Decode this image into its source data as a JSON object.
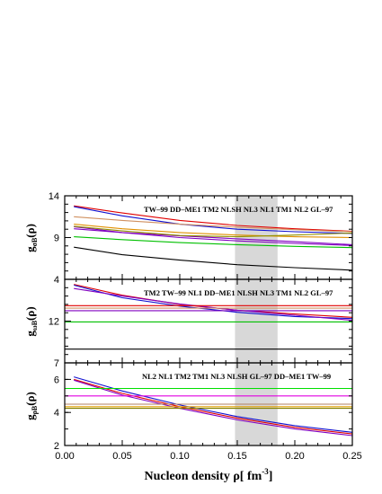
{
  "chart_data": {
    "type": "line",
    "xlabel": "Nucleon density ρ[ fm",
    "xlabel_sup": "-3",
    "xlabel_close": "]",
    "xlim": [
      0.0,
      0.25
    ],
    "x_ticks": [
      "0.00",
      "0.05",
      "0.10",
      "0.15",
      "0.20",
      "0.25"
    ],
    "shaded_band": [
      0.148,
      0.185
    ],
    "panels": [
      {
        "id": "sigma",
        "ylabel": "g",
        "ylabel_sub": "σB",
        "ylabel_arg": "(ρ)",
        "ylim": [
          4,
          14
        ],
        "y_ticks": [
          "4",
          "9",
          "14"
        ],
        "legend": "TW–99  DD–ME1 TM2 NLSH  NL3  NL1  TM1 NL2  GL–97",
        "series": [
          {
            "color": "#e00000",
            "x": [
              0.008,
              0.05,
              0.1,
              0.15,
              0.2,
              0.25
            ],
            "y": [
              12.8,
              11.95,
              11.05,
              10.45,
              10.05,
              9.75
            ]
          },
          {
            "color": "#1010d0",
            "x": [
              0.008,
              0.05,
              0.1,
              0.15,
              0.2,
              0.25
            ],
            "y": [
              12.7,
              11.6,
              10.6,
              10.0,
              9.7,
              9.5
            ]
          },
          {
            "color": "#8000c0",
            "x": [
              0.008,
              0.05,
              0.1,
              0.15,
              0.2,
              0.25
            ],
            "y": [
              10.3,
              9.6,
              9.0,
              8.6,
              8.3,
              8.05
            ]
          },
          {
            "color": "#8000c0",
            "x": [
              0.008,
              0.05,
              0.1,
              0.15,
              0.2,
              0.25
            ],
            "y": [
              10.05,
              9.6,
              9.2,
              8.85,
              8.5,
              8.15
            ]
          },
          {
            "color": "#d09060",
            "x": [
              0.008,
              0.05,
              0.1,
              0.15,
              0.2,
              0.25
            ],
            "y": [
              11.5,
              11.05,
              10.6,
              10.25,
              9.95,
              9.7
            ]
          },
          {
            "color": "#e09000",
            "x": [
              0.008,
              0.05,
              0.1,
              0.15,
              0.2,
              0.25
            ],
            "y": [
              10.6,
              10.05,
              9.6,
              9.3,
              9.1,
              9.0
            ]
          },
          {
            "color": "#909000",
            "x": [
              0.008,
              0.05,
              0.1,
              0.15,
              0.2,
              0.25
            ],
            "y": [
              10.35,
              9.8,
              9.25,
              9.1,
              9.3,
              9.55
            ]
          },
          {
            "color": "#00c000",
            "x": [
              0.008,
              0.05,
              0.1,
              0.15,
              0.2,
              0.25
            ],
            "y": [
              9.1,
              8.75,
              8.4,
              8.15,
              7.95,
              7.8
            ]
          },
          {
            "color": "#000000",
            "x": [
              0.008,
              0.05,
              0.1,
              0.15,
              0.2,
              0.25
            ],
            "y": [
              7.85,
              6.95,
              6.3,
              5.75,
              5.4,
              5.1
            ]
          }
        ]
      },
      {
        "id": "omega",
        "ylabel": "g",
        "ylabel_sub": "ωB",
        "ylabel_arg": "(ρ)",
        "ylim": [
          7,
          17
        ],
        "y_ticks": [
          "7",
          "12"
        ],
        "legend": "TM2  TW–99  NL1  DD–ME1  NLSH  NL3  TM1 NL2  GL–97",
        "series": [
          {
            "color": "#e00000",
            "x": [
              0.008,
              0.05,
              0.1,
              0.15,
              0.2,
              0.25
            ],
            "y": [
              16.4,
              15.1,
              14.0,
              13.3,
              12.85,
              12.45
            ]
          },
          {
            "color": "#1010d0",
            "x": [
              0.008,
              0.05,
              0.1,
              0.15,
              0.2,
              0.25
            ],
            "y": [
              16.3,
              14.8,
              13.8,
              13.05,
              12.55,
              12.3
            ]
          },
          {
            "color": "#8000c0",
            "x": [
              0.008,
              0.05,
              0.1,
              0.15,
              0.2,
              0.25
            ],
            "y": [
              15.9,
              15.0,
              14.05,
              13.3,
              12.7,
              12.1
            ]
          },
          {
            "color": "#e00000",
            "x": [
              0.0,
              0.25
            ],
            "y": [
              13.85,
              13.85
            ]
          },
          {
            "color": "#d09060",
            "x": [
              0.0,
              0.25
            ],
            "y": [
              13.55,
              13.55
            ]
          },
          {
            "color": "#8000c0",
            "x": [
              0.0,
              0.25
            ],
            "y": [
              13.25,
              13.25
            ]
          },
          {
            "color": "#00c000",
            "x": [
              0.0,
              0.25
            ],
            "y": [
              11.9,
              11.9
            ]
          },
          {
            "color": "#000000",
            "x": [
              0.0,
              0.25
            ],
            "y": [
              8.65,
              8.65
            ]
          }
        ]
      },
      {
        "id": "rho",
        "ylabel": "g",
        "ylabel_sub": "ρB",
        "ylabel_arg": "(ρ)",
        "ylim": [
          2,
          7
        ],
        "y_ticks": [
          "2",
          "4",
          "6"
        ],
        "legend": "NL2  NL1  TM2  TM1  NL3  NLSH GL–97   DD–ME1  TW–99",
        "series": [
          {
            "color": "#1010d0",
            "x": [
              0.008,
              0.05,
              0.1,
              0.15,
              0.2,
              0.25
            ],
            "y": [
              6.15,
              5.3,
              4.45,
              3.75,
              3.2,
              2.8
            ]
          },
          {
            "color": "#e00000",
            "x": [
              0.008,
              0.05,
              0.1,
              0.15,
              0.2,
              0.25
            ],
            "y": [
              6.0,
              5.15,
              4.35,
              3.65,
              3.1,
              2.7
            ]
          },
          {
            "color": "#8000c0",
            "x": [
              0.008,
              0.05,
              0.1,
              0.15,
              0.2,
              0.25
            ],
            "y": [
              5.95,
              5.05,
              4.25,
              3.55,
              3.0,
              2.6
            ]
          },
          {
            "color": "#00e000",
            "x": [
              0.0,
              0.25
            ],
            "y": [
              5.45,
              5.45
            ]
          },
          {
            "color": "#e000e0",
            "x": [
              0.0,
              0.25
            ],
            "y": [
              5.0,
              5.0
            ]
          },
          {
            "color": "#b08060",
            "x": [
              0.0,
              0.25
            ],
            "y": [
              4.5,
              4.5
            ]
          },
          {
            "color": "#e0a000",
            "x": [
              0.0,
              0.25
            ],
            "y": [
              4.35,
              4.35
            ]
          },
          {
            "color": "#808000",
            "x": [
              0.0,
              0.25
            ],
            "y": [
              4.25,
              4.25
            ]
          }
        ]
      }
    ]
  }
}
